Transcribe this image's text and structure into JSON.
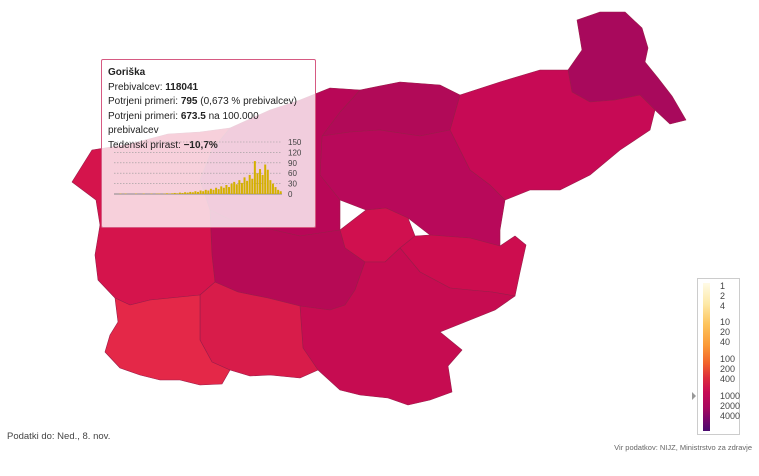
{
  "regions": [
    {
      "id": "pomurska",
      "color": "#a8095c"
    },
    {
      "id": "podravska",
      "color": "#c70a55"
    },
    {
      "id": "koroska",
      "color": "#b10a58"
    },
    {
      "id": "savinjska",
      "color": "#b8095a"
    },
    {
      "id": "zasavska",
      "color": "#d0104f"
    },
    {
      "id": "posavska",
      "color": "#cd0d4f"
    },
    {
      "id": "gorenjska",
      "color": "#b80757"
    },
    {
      "id": "osrednjeslovenska",
      "color": "#b60a55"
    },
    {
      "id": "jugovzhodna",
      "color": "#c60c51"
    },
    {
      "id": "goriska",
      "color": "#d5144c"
    },
    {
      "id": "primorsko-notranjska",
      "color": "#d81c4a"
    },
    {
      "id": "obalno-kraska",
      "color": "#e42848"
    }
  ],
  "tooltip": {
    "region_name": "Goriška",
    "population_label": "Prebivalcev:",
    "population_value": "118041",
    "confirmed_label": "Potrjeni primeri:",
    "confirmed_value": "795",
    "confirmed_pct": "(0,673 % prebivalcev)",
    "rate_label": "Potrjeni primeri:",
    "rate_value": "673.5",
    "rate_suffix": "na 100.000 prebivalcev",
    "growth_label": "Tedenski prirast:",
    "growth_value": "−10,7%",
    "spark_yticks": [
      "150",
      "120",
      "90",
      "60",
      "30",
      "0"
    ],
    "spark_values": [
      0,
      0,
      1,
      0,
      1,
      0,
      0,
      0,
      1,
      0,
      0,
      1,
      0,
      0,
      1,
      0,
      1,
      1,
      0,
      1,
      2,
      1,
      2,
      3,
      2,
      4,
      3,
      5,
      4,
      6,
      5,
      8,
      6,
      10,
      8,
      12,
      10,
      15,
      12,
      18,
      14,
      22,
      18,
      26,
      20,
      30,
      35,
      28,
      40,
      32,
      48,
      38,
      55,
      44,
      95,
      60,
      72,
      55,
      85,
      70,
      40,
      30,
      20,
      12,
      8
    ]
  },
  "legend": {
    "labels": [
      "1",
      "2",
      "4",
      "10",
      "20",
      "40",
      "100",
      "200",
      "400",
      "1000",
      "2000",
      "4000"
    ]
  },
  "date_note": "Podatki do: Ned., 8. nov.",
  "source_note": "Vir podatkov: NIJZ, Ministrstvo za zdravje",
  "colors": {
    "accent": "#c70a55",
    "highlight_border": "#d65a82",
    "spark_bar": "#d4b000"
  }
}
